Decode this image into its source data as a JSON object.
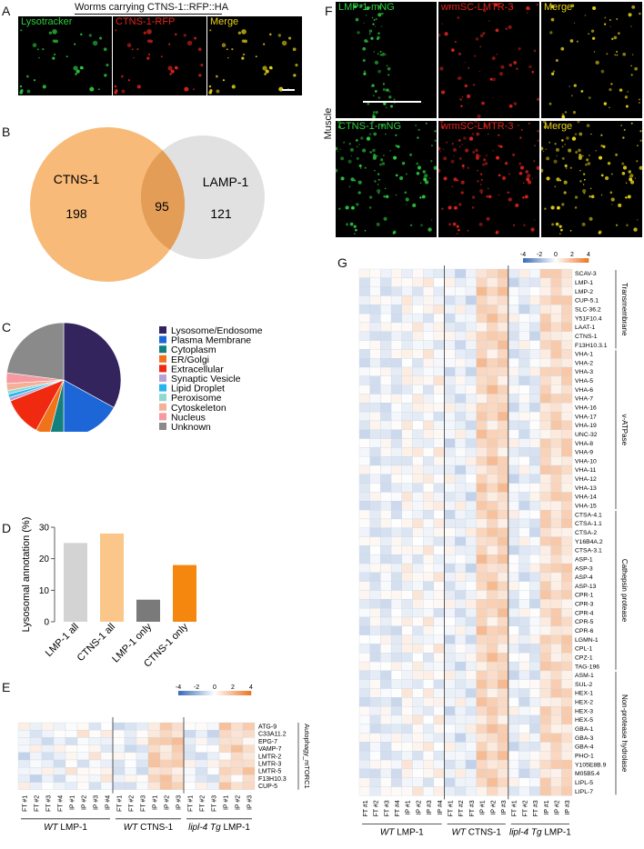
{
  "panels": {
    "A": "A",
    "B": "B",
    "C": "C",
    "D": "D",
    "E": "E",
    "F": "F",
    "G": "G"
  },
  "panel_a": {
    "title": "Worms carrying CTNS-1::RFP::HA",
    "channels": [
      {
        "label": "Lysotracker",
        "color": "#2ecc40"
      },
      {
        "label": "CTNS-1-RFP",
        "color": "#e0241b"
      },
      {
        "label": "Merge",
        "color": "#e6d21a"
      }
    ]
  },
  "panel_b": {
    "left_label": "CTNS-1",
    "right_label": "LAMP-1",
    "left_only": "198",
    "overlap": "95",
    "right_only": "121",
    "left_color": "#f6b46b",
    "right_color": "#d9d9d9"
  },
  "chart_data": [
    {
      "type": "pie",
      "title": "",
      "slices": [
        {
          "label": "Lysosome/Endosome",
          "value": 33,
          "color": "#33245e"
        },
        {
          "label": "Plasma Membrane",
          "value": 17,
          "color": "#1d66d8"
        },
        {
          "label": "Cytoplasm",
          "value": 4,
          "color": "#138080"
        },
        {
          "label": "ER/Golgi",
          "value": 4,
          "color": "#f0731b"
        },
        {
          "label": "Extracellular",
          "value": 11,
          "color": "#f02a10"
        },
        {
          "label": "Synaptic Vesicle",
          "value": 1,
          "color": "#b7a2d8"
        },
        {
          "label": "Lipid Droplet",
          "value": 1,
          "color": "#26b6ee"
        },
        {
          "label": "Peroxisome",
          "value": 1,
          "color": "#8ed8d0"
        },
        {
          "label": "Cytoskeleton",
          "value": 2,
          "color": "#f5b09a"
        },
        {
          "label": "Nucleus",
          "value": 3,
          "color": "#f59aa0"
        },
        {
          "label": "Unknown",
          "value": 23,
          "color": "#8a8a8a"
        }
      ]
    },
    {
      "type": "bar",
      "categories": [
        "LMP-1 all",
        "CTNS-1 all",
        "LMP-1 only",
        "CTNS-1 only"
      ],
      "values": [
        25,
        28,
        7,
        18
      ],
      "colors": [
        "#d3d3d3",
        "#fbc68a",
        "#7a7a7a",
        "#f5870f"
      ],
      "ylabel": "Lysosomal annotation (%)",
      "ylim": [
        0,
        30
      ],
      "yticks": [
        "0",
        "10",
        "20",
        "30"
      ]
    }
  ],
  "heat": {
    "scale_ticks": [
      "-4",
      "-2",
      "0",
      "2",
      "4"
    ],
    "columns": [
      "FT #1",
      "FT #2",
      "FT #3",
      "FT #4",
      "IP #1",
      "IP #2",
      "IP #3",
      "IP #4",
      "FT #1",
      "FT #2",
      "FT #3",
      "IP #1",
      "IP #2",
      "IP #3",
      "FT #1",
      "FT #2",
      "FT #3",
      "IP #1",
      "IP #2",
      "IP #3"
    ],
    "groups": [
      {
        "label_italic": "WT",
        "label_rest": " LMP-1"
      },
      {
        "label_italic": "WT",
        "label_rest": " CTNS-1"
      },
      {
        "label_italic": "lipl-4 Tg",
        "label_rest": " LMP-1"
      }
    ]
  },
  "panel_e": {
    "rows": [
      "ATG-9",
      "C33A11.2",
      "EPG-7",
      "VAMP-7",
      "LMTR-2",
      "LMTR-3",
      "LMTR-5",
      "F13H10.3",
      "CUP-5"
    ],
    "category": "Autophagy_mTORC1"
  },
  "panel_f": {
    "side_label": "Muscle",
    "rows": [
      [
        {
          "label": "LMP-1-mNG",
          "color": "#2ecc40"
        },
        {
          "label": "wrmSC-LMTR-3",
          "color": "#e0241b"
        },
        {
          "label": "Merge",
          "color": "#e6d21a"
        }
      ],
      [
        {
          "label": "CTNS-1-mNG",
          "color": "#2ecc40"
        },
        {
          "label": "wrmSC-LMTR-3",
          "color": "#e0241b"
        },
        {
          "label": "Merge",
          "color": "#e6d21a"
        }
      ]
    ]
  },
  "panel_g": {
    "rows": [
      "SCAV-3",
      "LMP-1",
      "LMP-2",
      "CUP-5.1",
      "SLC-36.2",
      "Y51F10.4",
      "LAAT-1",
      "CTNS-1",
      "F13H10.3.1",
      "VHA-1",
      "VHA-2",
      "VHA-3",
      "VHA-5",
      "VHA-6",
      "VHA-7",
      "VHA-16",
      "VHA-17",
      "VHA-19",
      "UNC-32",
      "VHA-8",
      "VHA-9",
      "VHA-10",
      "VHA-11",
      "VHA-12",
      "VHA-13",
      "VHA-14",
      "VHA-15",
      "CTSA-4.1",
      "CTSA-1.1",
      "CTSA-2",
      "Y16B4A.2",
      "CTSA-3.1",
      "ASP-1",
      "ASP-3",
      "ASP-4",
      "ASP-13",
      "CPR-1",
      "CPR-3",
      "CPR-4",
      "CPR-5",
      "CPR-6",
      "LGMN-1",
      "CPL-1",
      "CPZ-1",
      "TAG-196",
      "ASM-1",
      "SUL-2",
      "HEX-1",
      "HEX-2",
      "HEX-3",
      "HEX-5",
      "GBA-1",
      "GBA-3",
      "GBA-4",
      "PHO-1",
      "Y105E8B.9",
      "M05B5.4",
      "LIPL-5",
      "LIPL-7"
    ],
    "categories": [
      {
        "label": "Transmembrane",
        "start": 0,
        "end": 8
      },
      {
        "label": "v-ATPase",
        "start": 9,
        "end": 26
      },
      {
        "label": "Cathepsin protease",
        "start": 27,
        "end": 44
      },
      {
        "label": "Non-protease hydrolase",
        "start": 45,
        "end": 58
      }
    ]
  }
}
